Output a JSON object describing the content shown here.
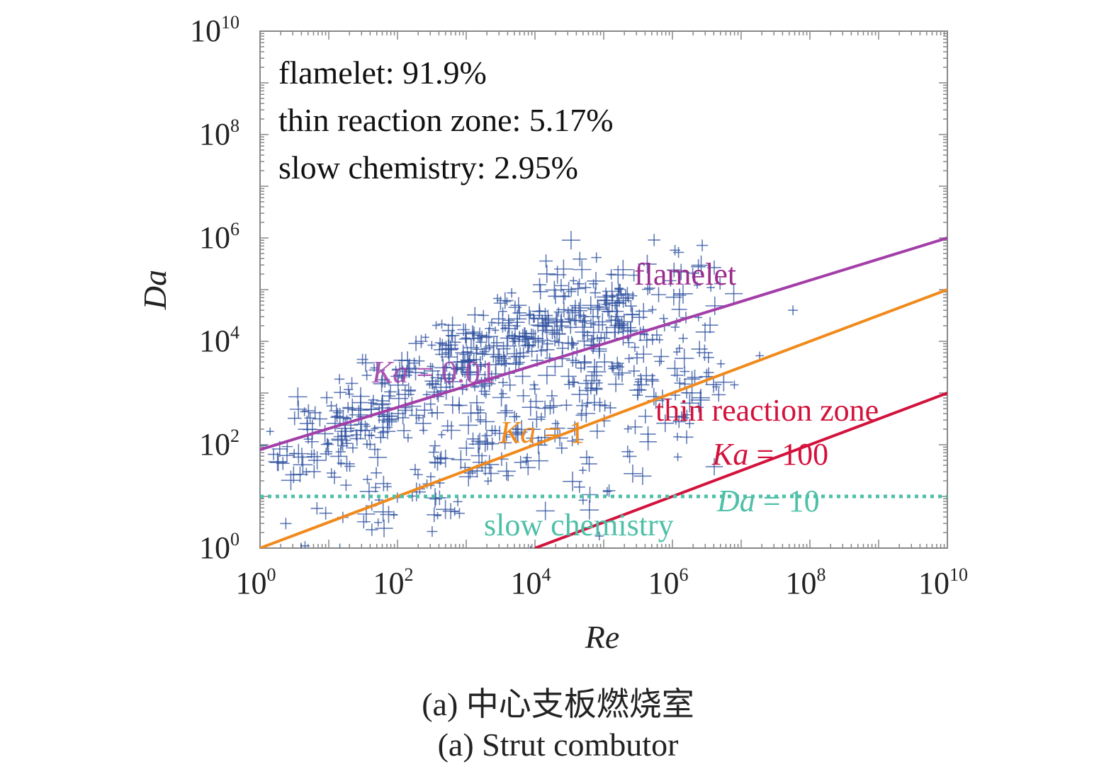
{
  "chart_data": {
    "type": "scatter",
    "xscale": "log",
    "yscale": "log",
    "xlabel": "Re",
    "ylabel": "Da",
    "xlim": [
      1,
      10000000000
    ],
    "ylim": [
      1,
      10000000000
    ],
    "x_ticks": [
      {
        "base": "10",
        "exp": "0"
      },
      {
        "base": "10",
        "exp": "2"
      },
      {
        "base": "10",
        "exp": "4"
      },
      {
        "base": "10",
        "exp": "6"
      },
      {
        "base": "10",
        "exp": "8"
      },
      {
        "base": "10",
        "exp": "10"
      }
    ],
    "y_ticks": [
      {
        "base": "10",
        "exp": "0"
      },
      {
        "base": "10",
        "exp": "2"
      },
      {
        "base": "10",
        "exp": "4"
      },
      {
        "base": "10",
        "exp": "6"
      },
      {
        "base": "10",
        "exp": "8"
      },
      {
        "base": "10",
        "exp": "10"
      }
    ],
    "grid": false,
    "stats": [
      "flamelet: 91.9%",
      "thin reaction zone: 5.17%",
      "slow chemistry: 2.95%"
    ],
    "regions": [
      {
        "label": "flamelet",
        "color": "#9b2d8e"
      },
      {
        "label": "thin reaction zone",
        "color": "#d3123c"
      },
      {
        "label": "slow chemistry",
        "color": "#4fc0a8"
      }
    ],
    "boundary_lines": [
      {
        "name": "Ka = 0.01",
        "label_var": "Ka",
        "label_val": " = 0.01",
        "color": "#a33ea8",
        "dash": false,
        "points": [
          [
            1,
            80
          ],
          [
            10000000000,
            1000000
          ]
        ]
      },
      {
        "name": "Ka = 1",
        "label_var": "Ka",
        "label_val": " = 1",
        "color": "#f08a1c",
        "dash": false,
        "points": [
          [
            1,
            1
          ],
          [
            10000000000,
            100000
          ]
        ]
      },
      {
        "name": "Ka = 100",
        "label_var": "Ka",
        "label_val": " = 100",
        "color": "#d3123c",
        "dash": false,
        "points": [
          [
            10000,
            1
          ],
          [
            10000000000,
            1000
          ]
        ]
      },
      {
        "name": "Da = 10",
        "label_var": "Da",
        "label_val": " = 10",
        "color": "#4fc0a8",
        "dash": true,
        "points": [
          [
            1,
            10
          ],
          [
            10000000000,
            10
          ]
        ]
      }
    ],
    "scatter_color": "#2d4f9e",
    "scatter_clusters": [
      {
        "cx": 4.2,
        "cy": 4.4,
        "sx": 0.9,
        "sy": 0.45,
        "n": 180
      },
      {
        "cx": 2.6,
        "cy": 3.4,
        "sx": 0.9,
        "sy": 0.45,
        "n": 160
      },
      {
        "cx": 1.2,
        "cy": 2.2,
        "sx": 0.7,
        "sy": 0.45,
        "n": 110
      },
      {
        "cx": 3.4,
        "cy": 2.0,
        "sx": 0.9,
        "sy": 0.5,
        "n": 90
      },
      {
        "cx": 5.2,
        "cy": 4.0,
        "sx": 0.8,
        "sy": 0.55,
        "n": 110
      },
      {
        "cx": 6.0,
        "cy": 3.2,
        "sx": 0.7,
        "sy": 0.45,
        "n": 60
      },
      {
        "cx": 2.0,
        "cy": 0.9,
        "sx": 0.9,
        "sy": 0.35,
        "n": 40
      },
      {
        "cx": 5.5,
        "cy": 1.8,
        "sx": 0.9,
        "sy": 0.8,
        "n": 25
      }
    ]
  },
  "captions": {
    "zh": "(a) 中心支板燃烧室",
    "en": "(a) Strut combutor"
  }
}
